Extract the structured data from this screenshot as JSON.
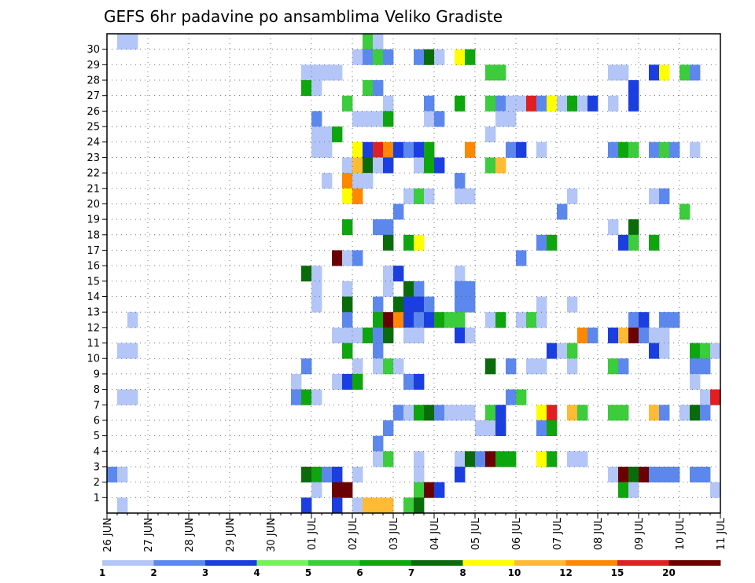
{
  "chart_data": {
    "type": "heatmap",
    "title": "GEFS 6hr padavine po ansamblima Veliko Gradiste",
    "xlabel": "",
    "ylabel": "",
    "y_labels": [
      "1",
      "2",
      "3",
      "4",
      "5",
      "6",
      "7",
      "8",
      "9",
      "10",
      "11",
      "12",
      "13",
      "14",
      "15",
      "16",
      "17",
      "18",
      "19",
      "20",
      "21",
      "22",
      "23",
      "24",
      "25",
      "26",
      "27",
      "28",
      "29",
      "30"
    ],
    "x_labels": [
      "26 JUN",
      "27 JUN",
      "28 JUN",
      "29 JUN",
      "30 JUN",
      "01 JUL",
      "02 JUL",
      "03 JUL",
      "04 JUL",
      "05 JUL",
      "06 JUL",
      "07 JUL",
      "08 JUL",
      "09 JUL",
      "10 JUL",
      "11 JUL"
    ],
    "x_steps": 60,
    "steps_per_day": 4,
    "grid": true,
    "colorbar": {
      "labels": [
        "1",
        "2",
        "3",
        "4",
        "5",
        "6",
        "7",
        "8",
        "10",
        "12",
        "15",
        "20"
      ],
      "colors": [
        "#b3c6f7",
        "#5c88ee",
        "#1a3ee0",
        "#78f060",
        "#3ccc3c",
        "#0ea60e",
        "#0a6b0a",
        "#ffff00",
        "#ffbb33",
        "#ff8800",
        "#e02020",
        "#6b0000"
      ]
    },
    "cells": [
      [
        30,
        1,
        0
      ],
      [
        30,
        2,
        0
      ],
      [
        30,
        25,
        4
      ],
      [
        30,
        26,
        0
      ],
      [
        29,
        24,
        0
      ],
      [
        29,
        25,
        1
      ],
      [
        29,
        26,
        4
      ],
      [
        29,
        27,
        1
      ],
      [
        29,
        30,
        1
      ],
      [
        29,
        31,
        6
      ],
      [
        29,
        32,
        0
      ],
      [
        29,
        34,
        7
      ],
      [
        29,
        35,
        5
      ],
      [
        28,
        19,
        0
      ],
      [
        28,
        20,
        0
      ],
      [
        28,
        21,
        0
      ],
      [
        28,
        22,
        0
      ],
      [
        28,
        37,
        4
      ],
      [
        28,
        38,
        4
      ],
      [
        28,
        49,
        0
      ],
      [
        28,
        50,
        0
      ],
      [
        28,
        53,
        2
      ],
      [
        28,
        54,
        7
      ],
      [
        28,
        56,
        4
      ],
      [
        28,
        57,
        1
      ],
      [
        27,
        19,
        5
      ],
      [
        27,
        20,
        0
      ],
      [
        27,
        25,
        4
      ],
      [
        27,
        26,
        1
      ],
      [
        27,
        51,
        2
      ],
      [
        26,
        23,
        4
      ],
      [
        26,
        27,
        0
      ],
      [
        26,
        31,
        1
      ],
      [
        26,
        34,
        5
      ],
      [
        26,
        37,
        4
      ],
      [
        26,
        38,
        1
      ],
      [
        26,
        39,
        0
      ],
      [
        26,
        40,
        0
      ],
      [
        26,
        41,
        10
      ],
      [
        26,
        42,
        1
      ],
      [
        26,
        43,
        7
      ],
      [
        26,
        44,
        0
      ],
      [
        26,
        45,
        5
      ],
      [
        26,
        46,
        0
      ],
      [
        26,
        47,
        2
      ],
      [
        26,
        49,
        0
      ],
      [
        26,
        51,
        2
      ],
      [
        25,
        20,
        1
      ],
      [
        25,
        24,
        0
      ],
      [
        25,
        25,
        0
      ],
      [
        25,
        26,
        0
      ],
      [
        25,
        27,
        5
      ],
      [
        25,
        31,
        0
      ],
      [
        25,
        32,
        1
      ],
      [
        25,
        38,
        0
      ],
      [
        25,
        39,
        0
      ],
      [
        24,
        20,
        0
      ],
      [
        24,
        21,
        0
      ],
      [
        24,
        22,
        5
      ],
      [
        24,
        37,
        0
      ],
      [
        23,
        20,
        0
      ],
      [
        23,
        21,
        0
      ],
      [
        23,
        24,
        7
      ],
      [
        23,
        25,
        2
      ],
      [
        23,
        26,
        10
      ],
      [
        23,
        27,
        9
      ],
      [
        23,
        28,
        2
      ],
      [
        23,
        29,
        1
      ],
      [
        23,
        30,
        2
      ],
      [
        23,
        31,
        5
      ],
      [
        23,
        35,
        9
      ],
      [
        23,
        39,
        1
      ],
      [
        23,
        40,
        2
      ],
      [
        23,
        42,
        0
      ],
      [
        23,
        49,
        1
      ],
      [
        23,
        50,
        5
      ],
      [
        23,
        51,
        4
      ],
      [
        23,
        53,
        1
      ],
      [
        23,
        54,
        4
      ],
      [
        23,
        55,
        1
      ],
      [
        23,
        57,
        0
      ],
      [
        22,
        23,
        0
      ],
      [
        22,
        24,
        8
      ],
      [
        22,
        25,
        6
      ],
      [
        22,
        26,
        0
      ],
      [
        22,
        27,
        2
      ],
      [
        22,
        30,
        0
      ],
      [
        22,
        31,
        5
      ],
      [
        22,
        32,
        2
      ],
      [
        22,
        37,
        4
      ],
      [
        22,
        38,
        8
      ],
      [
        21,
        21,
        0
      ],
      [
        21,
        23,
        9
      ],
      [
        21,
        24,
        0
      ],
      [
        21,
        25,
        0
      ],
      [
        21,
        34,
        1
      ],
      [
        20,
        23,
        7
      ],
      [
        20,
        24,
        9
      ],
      [
        20,
        29,
        0
      ],
      [
        20,
        30,
        4
      ],
      [
        20,
        31,
        0
      ],
      [
        20,
        34,
        0
      ],
      [
        20,
        35,
        0
      ],
      [
        20,
        45,
        0
      ],
      [
        20,
        53,
        0
      ],
      [
        20,
        54,
        1
      ],
      [
        19,
        28,
        1
      ],
      [
        19,
        44,
        1
      ],
      [
        19,
        56,
        4
      ],
      [
        18,
        23,
        5
      ],
      [
        18,
        26,
        1
      ],
      [
        18,
        27,
        1
      ],
      [
        18,
        49,
        0
      ],
      [
        18,
        51,
        6
      ],
      [
        17,
        27,
        6
      ],
      [
        17,
        29,
        5
      ],
      [
        17,
        30,
        7
      ],
      [
        17,
        42,
        1
      ],
      [
        17,
        43,
        5
      ],
      [
        17,
        50,
        2
      ],
      [
        17,
        51,
        4
      ],
      [
        17,
        53,
        5
      ],
      [
        16,
        22,
        11
      ],
      [
        16,
        23,
        0
      ],
      [
        16,
        24,
        1
      ],
      [
        16,
        40,
        1
      ],
      [
        15,
        19,
        6
      ],
      [
        15,
        20,
        0
      ],
      [
        15,
        27,
        0
      ],
      [
        15,
        28,
        2
      ],
      [
        15,
        34,
        0
      ],
      [
        14,
        20,
        0
      ],
      [
        14,
        23,
        0
      ],
      [
        14,
        27,
        0
      ],
      [
        14,
        29,
        6
      ],
      [
        14,
        30,
        1
      ],
      [
        14,
        34,
        1
      ],
      [
        14,
        35,
        1
      ],
      [
        13,
        20,
        0
      ],
      [
        13,
        23,
        6
      ],
      [
        13,
        26,
        1
      ],
      [
        13,
        28,
        6
      ],
      [
        13,
        29,
        2
      ],
      [
        13,
        30,
        2
      ],
      [
        13,
        31,
        1
      ],
      [
        13,
        34,
        1
      ],
      [
        13,
        35,
        1
      ],
      [
        13,
        42,
        0
      ],
      [
        13,
        45,
        0
      ],
      [
        12,
        2,
        0
      ],
      [
        12,
        23,
        1
      ],
      [
        12,
        26,
        5
      ],
      [
        12,
        27,
        11
      ],
      [
        12,
        28,
        9
      ],
      [
        12,
        29,
        2
      ],
      [
        12,
        30,
        1
      ],
      [
        12,
        31,
        2
      ],
      [
        12,
        32,
        5
      ],
      [
        12,
        33,
        4
      ],
      [
        12,
        34,
        4
      ],
      [
        12,
        37,
        0
      ],
      [
        12,
        38,
        5
      ],
      [
        12,
        40,
        0
      ],
      [
        12,
        41,
        4
      ],
      [
        12,
        42,
        0
      ],
      [
        12,
        51,
        1
      ],
      [
        12,
        52,
        2
      ],
      [
        12,
        54,
        1
      ],
      [
        12,
        55,
        1
      ],
      [
        11,
        22,
        0
      ],
      [
        11,
        23,
        0
      ],
      [
        11,
        24,
        0
      ],
      [
        11,
        25,
        5
      ],
      [
        11,
        26,
        1
      ],
      [
        11,
        27,
        6
      ],
      [
        11,
        29,
        0
      ],
      [
        11,
        30,
        0
      ],
      [
        11,
        34,
        2
      ],
      [
        11,
        35,
        0
      ],
      [
        11,
        46,
        9
      ],
      [
        11,
        47,
        1
      ],
      [
        11,
        49,
        2
      ],
      [
        11,
        50,
        8
      ],
      [
        11,
        51,
        11
      ],
      [
        11,
        52,
        1
      ],
      [
        11,
        53,
        0
      ],
      [
        11,
        54,
        0
      ],
      [
        10,
        1,
        0
      ],
      [
        10,
        2,
        0
      ],
      [
        10,
        23,
        5
      ],
      [
        10,
        26,
        1
      ],
      [
        10,
        43,
        2
      ],
      [
        10,
        44,
        0
      ],
      [
        10,
        45,
        4
      ],
      [
        10,
        53,
        2
      ],
      [
        10,
        54,
        0
      ],
      [
        10,
        57,
        5
      ],
      [
        10,
        58,
        4
      ],
      [
        10,
        59,
        0
      ],
      [
        9,
        19,
        1
      ],
      [
        9,
        24,
        0
      ],
      [
        9,
        26,
        0
      ],
      [
        9,
        27,
        4
      ],
      [
        9,
        28,
        0
      ],
      [
        9,
        37,
        6
      ],
      [
        9,
        39,
        1
      ],
      [
        9,
        41,
        0
      ],
      [
        9,
        42,
        0
      ],
      [
        9,
        45,
        0
      ],
      [
        9,
        49,
        4
      ],
      [
        9,
        50,
        1
      ],
      [
        9,
        57,
        1
      ],
      [
        9,
        58,
        1
      ],
      [
        8,
        18,
        0
      ],
      [
        8,
        22,
        0
      ],
      [
        8,
        23,
        2
      ],
      [
        8,
        24,
        5
      ],
      [
        8,
        29,
        1
      ],
      [
        8,
        30,
        2
      ],
      [
        8,
        57,
        0
      ],
      [
        7,
        1,
        0
      ],
      [
        7,
        2,
        0
      ],
      [
        7,
        18,
        1
      ],
      [
        7,
        19,
        5
      ],
      [
        7,
        20,
        0
      ],
      [
        7,
        39,
        1
      ],
      [
        7,
        40,
        4
      ],
      [
        7,
        58,
        0
      ],
      [
        7,
        59,
        10
      ],
      [
        6,
        28,
        1
      ],
      [
        6,
        29,
        0
      ],
      [
        6,
        30,
        5
      ],
      [
        6,
        31,
        6
      ],
      [
        6,
        32,
        1
      ],
      [
        6,
        33,
        0
      ],
      [
        6,
        34,
        0
      ],
      [
        6,
        35,
        0
      ],
      [
        6,
        37,
        4
      ],
      [
        6,
        38,
        2
      ],
      [
        6,
        42,
        7
      ],
      [
        6,
        43,
        10
      ],
      [
        6,
        45,
        8
      ],
      [
        6,
        46,
        4
      ],
      [
        6,
        49,
        4
      ],
      [
        6,
        50,
        4
      ],
      [
        6,
        53,
        8
      ],
      [
        6,
        54,
        1
      ],
      [
        6,
        56,
        0
      ],
      [
        6,
        57,
        6
      ],
      [
        6,
        58,
        1
      ],
      [
        5,
        27,
        1
      ],
      [
        5,
        36,
        0
      ],
      [
        5,
        37,
        0
      ],
      [
        5,
        38,
        2
      ],
      [
        5,
        42,
        1
      ],
      [
        5,
        43,
        5
      ],
      [
        4,
        26,
        1
      ],
      [
        3,
        26,
        0
      ],
      [
        3,
        27,
        4
      ],
      [
        3,
        30,
        0
      ],
      [
        3,
        34,
        0
      ],
      [
        3,
        35,
        6
      ],
      [
        3,
        36,
        1
      ],
      [
        3,
        37,
        11
      ],
      [
        3,
        38,
        5
      ],
      [
        3,
        39,
        5
      ],
      [
        3,
        42,
        7
      ],
      [
        3,
        43,
        5
      ],
      [
        3,
        45,
        0
      ],
      [
        3,
        46,
        0
      ],
      [
        2,
        0,
        1
      ],
      [
        2,
        1,
        0
      ],
      [
        2,
        19,
        6
      ],
      [
        2,
        20,
        5
      ],
      [
        2,
        21,
        1
      ],
      [
        2,
        22,
        2
      ],
      [
        2,
        24,
        0
      ],
      [
        2,
        30,
        0
      ],
      [
        2,
        34,
        2
      ],
      [
        2,
        49,
        0
      ],
      [
        2,
        50,
        11
      ],
      [
        2,
        51,
        6
      ],
      [
        2,
        52,
        11
      ],
      [
        2,
        53,
        1
      ],
      [
        2,
        54,
        1
      ],
      [
        2,
        55,
        1
      ],
      [
        2,
        57,
        1
      ],
      [
        2,
        58,
        1
      ],
      [
        1,
        20,
        0
      ],
      [
        1,
        22,
        11
      ],
      [
        1,
        23,
        11
      ],
      [
        1,
        30,
        4
      ],
      [
        1,
        31,
        11
      ],
      [
        1,
        32,
        2
      ],
      [
        1,
        50,
        5
      ],
      [
        1,
        51,
        0
      ],
      [
        1,
        59,
        0
      ],
      [
        0,
        1,
        0
      ],
      [
        0,
        19,
        2
      ],
      [
        0,
        22,
        2
      ],
      [
        0,
        24,
        0
      ],
      [
        0,
        25,
        8
      ],
      [
        0,
        26,
        8
      ],
      [
        0,
        27,
        8
      ],
      [
        0,
        29,
        4
      ],
      [
        0,
        30,
        6
      ]
    ]
  }
}
